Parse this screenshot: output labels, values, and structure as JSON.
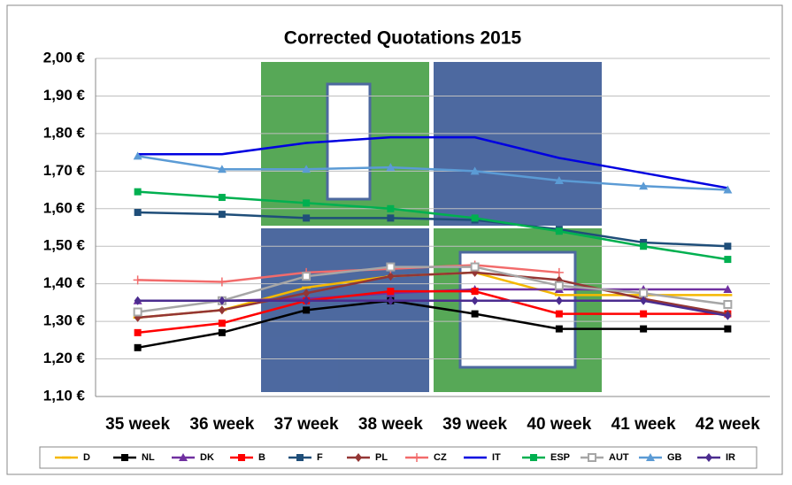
{
  "chart_data": {
    "type": "line",
    "title": "Corrected Quotations 2015",
    "categories": [
      "35 week",
      "36 week",
      "37 week",
      "38 week",
      "39 week",
      "40 week",
      "41 week",
      "42 week"
    ],
    "ylim": [
      1.1,
      2.0
    ],
    "yticks": [
      {
        "value": 1.1,
        "label": "1,10 €"
      },
      {
        "value": 1.2,
        "label": "1,20 €"
      },
      {
        "value": 1.3,
        "label": "1,30 €"
      },
      {
        "value": 1.4,
        "label": "1,40 €"
      },
      {
        "value": 1.5,
        "label": "1,50 €"
      },
      {
        "value": 1.6,
        "label": "1,60 €"
      },
      {
        "value": 1.7,
        "label": "1,70 €"
      },
      {
        "value": 1.8,
        "label": "1,80 €"
      },
      {
        "value": 1.9,
        "label": "1,90 €"
      },
      {
        "value": 2.0,
        "label": "2,00 €"
      }
    ],
    "grid": true,
    "legend": "bottom",
    "series": [
      {
        "name": "D",
        "color": "#f5b800",
        "marker": "dash",
        "values": [
          1.31,
          1.33,
          1.39,
          1.42,
          1.43,
          1.37,
          1.37,
          1.37
        ]
      },
      {
        "name": "NL",
        "color": "#000000",
        "marker": "square",
        "values": [
          1.23,
          1.27,
          1.33,
          1.355,
          1.32,
          1.28,
          1.28,
          1.28
        ]
      },
      {
        "name": "DK",
        "color": "#7030a0",
        "marker": "triangle",
        "values": [
          1.355,
          1.355,
          1.36,
          1.375,
          1.385,
          1.385,
          1.385,
          1.385
        ]
      },
      {
        "name": "B",
        "color": "#ff0000",
        "marker": "square",
        "values": [
          1.27,
          1.295,
          1.355,
          1.38,
          1.38,
          1.32,
          1.32,
          1.32
        ]
      },
      {
        "name": "F",
        "color": "#1f4e79",
        "marker": "square",
        "values": [
          1.59,
          1.585,
          1.575,
          1.575,
          1.57,
          1.545,
          1.51,
          1.5
        ]
      },
      {
        "name": "PL",
        "color": "#943634",
        "marker": "diamond",
        "values": [
          1.31,
          1.33,
          1.375,
          1.42,
          1.43,
          1.41,
          1.36,
          1.32
        ]
      },
      {
        "name": "CZ",
        "color": "#f26b6b",
        "marker": "plus",
        "values": [
          1.41,
          1.405,
          1.43,
          1.44,
          1.45,
          1.43,
          null,
          null
        ]
      },
      {
        "name": "IT",
        "color": "#0000e0",
        "marker": "none",
        "values": [
          1.745,
          1.745,
          1.775,
          1.79,
          1.79,
          1.735,
          1.695,
          1.655
        ]
      },
      {
        "name": "ESP",
        "color": "#00b050",
        "marker": "square",
        "values": [
          1.645,
          1.63,
          1.615,
          1.6,
          1.575,
          1.54,
          1.5,
          1.465
        ]
      },
      {
        "name": "AUT",
        "color": "#a6a6a6",
        "marker": "hollow-square",
        "values": [
          1.325,
          1.355,
          1.42,
          1.445,
          1.445,
          1.395,
          1.375,
          1.345
        ]
      },
      {
        "name": "GB",
        "color": "#5b9bd5",
        "marker": "triangle",
        "values": [
          1.74,
          1.705,
          1.705,
          1.71,
          1.7,
          1.675,
          1.66,
          1.65
        ]
      },
      {
        "name": "IR",
        "color": "#4b2c8f",
        "marker": "diamond",
        "values": [
          1.355,
          1.355,
          1.355,
          1.355,
          1.355,
          1.355,
          1.355,
          1.315
        ]
      }
    ]
  }
}
